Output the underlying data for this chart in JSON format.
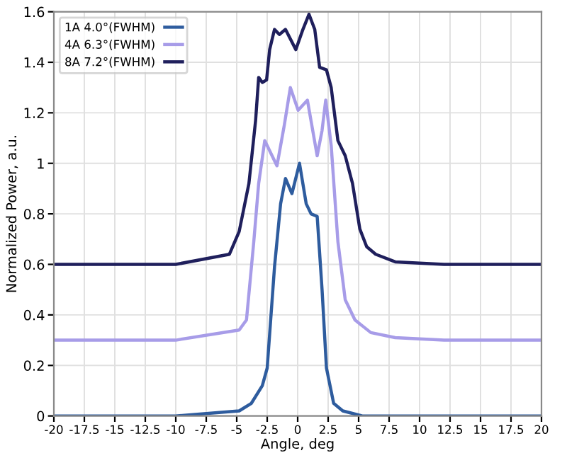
{
  "chart_data": {
    "type": "line",
    "xlabel": "Angle, deg",
    "ylabel": "Normalized Power, a.u.",
    "xlim": [
      -20,
      20
    ],
    "ylim": [
      0,
      1.6
    ],
    "xticks": [
      -20,
      -17.5,
      -15,
      -12.5,
      -10,
      -7.5,
      -5,
      -2.5,
      0,
      2.5,
      5,
      7.5,
      10,
      12.5,
      15,
      17.5,
      20
    ],
    "yticks": [
      0,
      0.2,
      0.4,
      0.6,
      0.8,
      1,
      1.2,
      1.4,
      1.6
    ],
    "grid": true,
    "legend": "top left",
    "line_style": "solid",
    "series": [
      {
        "name": "1A 4.0°(FWHM)",
        "color": "#2e5c9e",
        "x": [
          -20,
          -10,
          -4.8,
          -3.8,
          -2.9,
          -2.5,
          -1.9,
          -1.4,
          -1.0,
          -0.47,
          0.15,
          0.7,
          1.1,
          1.6,
          2.0,
          2.36,
          2.95,
          3.7,
          5.3,
          10,
          20
        ],
        "values": [
          0,
          0,
          0.02,
          0.05,
          0.12,
          0.19,
          0.59,
          0.84,
          0.94,
          0.88,
          1.0,
          0.84,
          0.8,
          0.79,
          0.5,
          0.19,
          0.05,
          0.02,
          0,
          0,
          0
        ]
      },
      {
        "name": "4A 6.3°(FWHM)",
        "color": "#a79ce8",
        "x": [
          -20,
          -10,
          -4.8,
          -4.2,
          -3.6,
          -3.2,
          -2.7,
          -2.1,
          -1.7,
          -1.1,
          -0.6,
          0.04,
          0.8,
          1.6,
          2.0,
          2.3,
          2.75,
          3.3,
          3.9,
          4.7,
          6.0,
          8,
          12,
          20
        ],
        "values": [
          0.3,
          0.3,
          0.34,
          0.38,
          0.69,
          0.92,
          1.09,
          1.03,
          0.99,
          1.15,
          1.3,
          1.21,
          1.25,
          1.03,
          1.13,
          1.25,
          1.07,
          0.69,
          0.46,
          0.38,
          0.33,
          0.31,
          0.3,
          0.3
        ]
      },
      {
        "name": "8A 7.2°(FWHM)",
        "color": "#1f1f5c",
        "x": [
          -20,
          -10,
          -5.6,
          -4.8,
          -4.0,
          -3.45,
          -3.2,
          -2.9,
          -2.55,
          -2.3,
          -1.9,
          -1.5,
          -1.0,
          -0.15,
          0.43,
          0.93,
          1.4,
          1.8,
          2.36,
          2.75,
          3.3,
          3.9,
          4.5,
          5.1,
          5.66,
          6.4,
          8,
          12,
          20
        ],
        "values": [
          0.6,
          0.6,
          0.64,
          0.73,
          0.92,
          1.17,
          1.34,
          1.32,
          1.33,
          1.45,
          1.53,
          1.51,
          1.53,
          1.45,
          1.53,
          1.59,
          1.53,
          1.38,
          1.37,
          1.3,
          1.09,
          1.03,
          0.92,
          0.74,
          0.67,
          0.64,
          0.61,
          0.6,
          0.6
        ]
      }
    ]
  }
}
